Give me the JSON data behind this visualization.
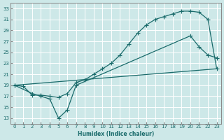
{
  "xlabel": "Humidex (Indice chaleur)",
  "bg_color": "#cde8e8",
  "grid_color": "#ffffff",
  "line_color": "#1a6b6b",
  "xlim": [
    -0.5,
    23.5
  ],
  "ylim": [
    12,
    34
  ],
  "xticks": [
    0,
    1,
    2,
    3,
    4,
    5,
    6,
    7,
    8,
    9,
    10,
    11,
    12,
    13,
    14,
    15,
    16,
    17,
    18,
    19,
    20,
    21,
    22,
    23
  ],
  "yticks": [
    13,
    15,
    17,
    19,
    21,
    23,
    25,
    27,
    29,
    31,
    33
  ],
  "line1_x": [
    0,
    1,
    2,
    3,
    4,
    5,
    6,
    7,
    8,
    9,
    10,
    11,
    12,
    13,
    14,
    15,
    16,
    17,
    18,
    19,
    20,
    21,
    22,
    23
  ],
  "line1_y": [
    19,
    18.8,
    17.2,
    17.2,
    17.0,
    16.8,
    17.5,
    19.5,
    20.0,
    21.0,
    22.0,
    23.0,
    24.5,
    26.5,
    28.5,
    30.0,
    31.0,
    31.5,
    32.0,
    32.5,
    32.5,
    32.3,
    31.0,
    22.0
  ],
  "line2_x": [
    0,
    2,
    3,
    4,
    5,
    6,
    7,
    20,
    21,
    22,
    23
  ],
  "line2_y": [
    19,
    17.5,
    17.0,
    16.5,
    13.0,
    14.5,
    19.0,
    28.0,
    26.0,
    24.5,
    24.0
  ],
  "line3_x": [
    0,
    23
  ],
  "line3_y": [
    19,
    22
  ]
}
